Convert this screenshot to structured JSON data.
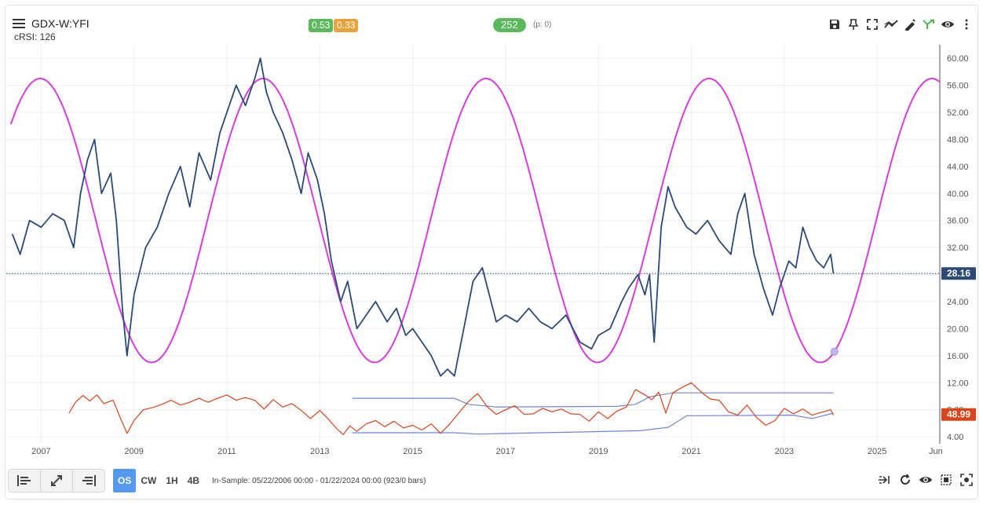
{
  "header": {
    "title": "GDX-W:YFI",
    "subtitle": "cRSI: 126",
    "badge_a": "0.53",
    "badge_b": "0.33",
    "badge_c": "252",
    "p_label": "(p: 0)"
  },
  "toolbar_icons": [
    "save-icon",
    "pin-icon",
    "fullscreen-icon",
    "trend-icon",
    "draw-icon",
    "branch-icon",
    "eye-icon",
    "more-icon"
  ],
  "colors": {
    "price": "#2c4a75",
    "cycle": "#d63ddb",
    "indicator": "#d9441a",
    "bands": "#6f86d6",
    "last_price_bg": "#2c4a75",
    "last_indicator_bg": "#d9441a"
  },
  "chart_data": {
    "type": "line",
    "x_range": [
      2006.25,
      2026.35
    ],
    "y_range": [
      4.0,
      62.0
    ],
    "ticks_x": [
      "2007",
      "2009",
      "2011",
      "2013",
      "2015",
      "2017",
      "2019",
      "2021",
      "2023",
      "2025",
      "Jun"
    ],
    "ticks_y": [
      "4.00",
      "8.00",
      "12.00",
      "16.00",
      "20.00",
      "24.00",
      "28.00",
      "32.00",
      "36.00",
      "40.00",
      "44.00",
      "48.00",
      "52.00",
      "56.00",
      "60.00"
    ],
    "last_price": 28.16,
    "last_price_label": "28.16",
    "last_indicator_label": "48.99",
    "price": {
      "x": [
        2006.38,
        2006.55,
        2006.75,
        2007.0,
        2007.25,
        2007.5,
        2007.7,
        2007.85,
        2008.0,
        2008.15,
        2008.3,
        2008.5,
        2008.62,
        2008.75,
        2008.85,
        2009.0,
        2009.25,
        2009.5,
        2009.75,
        2010.0,
        2010.2,
        2010.4,
        2010.65,
        2010.85,
        2011.0,
        2011.2,
        2011.4,
        2011.6,
        2011.72,
        2011.85,
        2012.0,
        2012.2,
        2012.4,
        2012.6,
        2012.75,
        2012.95,
        2013.1,
        2013.25,
        2013.45,
        2013.6,
        2013.8,
        2014.0,
        2014.2,
        2014.45,
        2014.65,
        2014.85,
        2015.0,
        2015.2,
        2015.4,
        2015.6,
        2015.75,
        2015.9,
        2016.1,
        2016.3,
        2016.5,
        2016.65,
        2016.8,
        2017.0,
        2017.25,
        2017.5,
        2017.75,
        2018.0,
        2018.3,
        2018.6,
        2018.85,
        2019.0,
        2019.25,
        2019.5,
        2019.65,
        2019.85,
        2020.0,
        2020.1,
        2020.2,
        2020.35,
        2020.5,
        2020.65,
        2020.9,
        2021.1,
        2021.35,
        2021.6,
        2021.85,
        2022.0,
        2022.15,
        2022.35,
        2022.55,
        2022.75,
        2022.9,
        2023.1,
        2023.25,
        2023.4,
        2023.55,
        2023.7,
        2023.85,
        2024.0,
        2024.06
      ],
      "y": [
        34,
        31,
        36,
        35,
        37,
        36,
        32,
        40,
        45,
        48,
        40,
        43,
        36,
        23,
        16,
        25,
        32,
        35,
        40,
        44,
        38,
        46,
        42,
        49,
        52,
        56,
        53,
        57,
        60,
        55,
        52,
        49,
        45,
        40,
        46,
        42,
        37,
        30,
        24,
        27,
        20,
        22,
        24,
        21,
        23,
        19,
        20,
        18,
        16,
        13,
        14,
        13,
        20,
        27,
        29,
        25,
        21,
        22,
        21,
        23,
        21,
        20,
        22,
        18,
        17,
        19,
        20,
        24,
        26,
        28,
        25,
        28,
        18,
        35,
        41,
        38,
        35,
        34,
        36,
        33,
        31,
        37,
        40,
        31,
        26,
        22,
        26,
        30,
        29,
        35,
        32,
        30,
        29,
        31,
        28.16
      ]
    },
    "cycle": {
      "center": 36.0,
      "amplitude": 21.0,
      "period_years": 4.8,
      "peak_at": 2016.58,
      "x_start": 2006.35,
      "x_end": 2026.35,
      "marker_x": 2024.08
    },
    "indicator": {
      "y_scale": [
        4.0,
        12.0
      ],
      "x": [
        2007.6,
        2007.75,
        2007.9,
        2008.05,
        2008.2,
        2008.35,
        2008.55,
        2008.7,
        2008.85,
        2009.0,
        2009.2,
        2009.4,
        2009.6,
        2009.8,
        2010.0,
        2010.2,
        2010.4,
        2010.6,
        2010.8,
        2011.0,
        2011.2,
        2011.4,
        2011.6,
        2011.8,
        2012.0,
        2012.2,
        2012.4,
        2012.6,
        2012.8,
        2013.0,
        2013.2,
        2013.35,
        2013.5,
        2013.65,
        2013.8,
        2014.0,
        2014.2,
        2014.4,
        2014.6,
        2014.8,
        2015.0,
        2015.2,
        2015.4,
        2015.6,
        2015.8,
        2016.0,
        2016.2,
        2016.4,
        2016.6,
        2016.8,
        2017.0,
        2017.2,
        2017.4,
        2017.6,
        2017.8,
        2018.0,
        2018.2,
        2018.4,
        2018.6,
        2018.8,
        2019.0,
        2019.2,
        2019.4,
        2019.6,
        2019.8,
        2020.0,
        2020.15,
        2020.3,
        2020.45,
        2020.6,
        2020.8,
        2021.0,
        2021.2,
        2021.4,
        2021.6,
        2021.8,
        2022.0,
        2022.2,
        2022.4,
        2022.6,
        2022.8,
        2023.0,
        2023.2,
        2023.4,
        2023.6,
        2023.8,
        2024.0,
        2024.06
      ],
      "y": [
        7.5,
        9.2,
        10.1,
        9.3,
        10.2,
        8.9,
        9.4,
        6.9,
        4.5,
        6.4,
        8.0,
        8.3,
        8.8,
        9.4,
        8.7,
        9.1,
        9.7,
        9.1,
        9.7,
        10.2,
        9.4,
        9.8,
        9.4,
        8.1,
        9.5,
        8.4,
        8.9,
        7.9,
        6.7,
        7.9,
        6.5,
        5.3,
        4.3,
        5.6,
        4.8,
        5.9,
        6.4,
        5.5,
        6.3,
        5.3,
        5.7,
        5.0,
        5.9,
        4.5,
        5.9,
        7.6,
        9.2,
        10.4,
        8.5,
        7.3,
        8.0,
        8.6,
        7.3,
        7.4,
        8.2,
        7.7,
        8.1,
        7.4,
        7.3,
        6.3,
        7.7,
        6.7,
        7.8,
        8.4,
        11.0,
        10.2,
        9.5,
        10.6,
        7.5,
        10.5,
        11.3,
        12.0,
        10.7,
        9.6,
        9.4,
        7.7,
        7.2,
        8.7,
        6.9,
        5.7,
        6.4,
        8.2,
        7.4,
        8.1,
        7.2,
        7.6,
        8.0,
        7.2
      ]
    },
    "bands": {
      "upper": {
        "x": [
          2013.7,
          2015.9,
          2016.2,
          2016.8,
          2019.4,
          2019.8,
          2020.1,
          2020.6,
          2024.06
        ],
        "y": [
          9.7,
          9.7,
          8.8,
          8.4,
          8.5,
          8.8,
          9.9,
          10.5,
          10.5
        ]
      },
      "lower": {
        "x": [
          2013.7,
          2015.9,
          2016.4,
          2018.5,
          2019.9,
          2020.5,
          2020.9,
          2023.2,
          2023.6,
          2024.06
        ],
        "y": [
          4.6,
          4.6,
          4.4,
          4.7,
          4.9,
          5.4,
          7.1,
          7.2,
          6.7,
          7.5
        ]
      }
    }
  },
  "footer": {
    "tf_os": "OS",
    "tf_cw": "CW",
    "tf_1h": "1H",
    "tf_4b": "4B",
    "sample_text": "In-Sample: 05/22/2006 00:00 - 01/22/2024 00:00 (923/0 bars)"
  }
}
